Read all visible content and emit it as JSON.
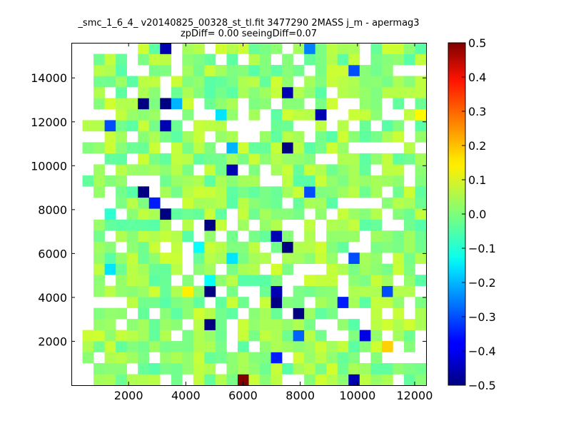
{
  "chart_data": {
    "type": "heatmap",
    "title": "_smc_1_6_4_ v20140825_00328_st_tl.fit 3477290 2MASS j_m - apermag3",
    "subtitle": "zpDiff= 0.00 seeingDiff=0.07",
    "xlabel": "",
    "ylabel": "",
    "xlim": [
      0,
      12400
    ],
    "ylim": [
      0,
      15600
    ],
    "x_ticks": [
      2000,
      4000,
      6000,
      8000,
      10000,
      12000
    ],
    "y_ticks": [
      2000,
      4000,
      6000,
      8000,
      10000,
      12000,
      14000
    ],
    "grid": false,
    "colorscale": "jet",
    "colorbar": {
      "min": -0.5,
      "max": 0.5,
      "ticks": [
        -0.5,
        -0.4,
        -0.3,
        -0.2,
        -0.1,
        0.0,
        0.1,
        0.2,
        0.3,
        0.4,
        0.5
      ]
    },
    "bin_size": [
      387.5,
      503.2
    ],
    "outlier_cells": [
      {
        "x": 5813,
        "y": 252,
        "value": 0.5
      },
      {
        "x": 9688,
        "y": 252,
        "value": -0.45
      },
      {
        "x": 6975,
        "y": 1258,
        "value": -0.35
      },
      {
        "x": 11138,
        "y": 1761,
        "value": 0.17
      },
      {
        "x": 7750,
        "y": 2264,
        "value": -0.28
      },
      {
        "x": 10075,
        "y": 2264,
        "value": -0.4
      },
      {
        "x": 4650,
        "y": 2767,
        "value": -0.5
      },
      {
        "x": 7750,
        "y": 3270,
        "value": -0.5
      },
      {
        "x": 6975,
        "y": 3774,
        "value": -0.5
      },
      {
        "x": 9300,
        "y": 3774,
        "value": -0.35
      },
      {
        "x": 4844,
        "y": 4277,
        "value": -0.38
      },
      {
        "x": 3875,
        "y": 4528,
        "value": 0.14
      },
      {
        "x": 4844,
        "y": 4528,
        "value": -0.5
      },
      {
        "x": 6975,
        "y": 4528,
        "value": -0.45
      },
      {
        "x": 10850,
        "y": 4528,
        "value": -0.3
      },
      {
        "x": 4844,
        "y": 5031,
        "value": -0.12
      },
      {
        "x": 5425,
        "y": 5786,
        "value": -0.15
      },
      {
        "x": 9688,
        "y": 5786,
        "value": -0.3
      },
      {
        "x": 1356,
        "y": 5535,
        "value": -0.15
      },
      {
        "x": 4456,
        "y": 6290,
        "value": -0.12
      },
      {
        "x": 7363,
        "y": 6290,
        "value": -0.5
      },
      {
        "x": 6975,
        "y": 6793,
        "value": -0.45
      },
      {
        "x": 4844,
        "y": 7296,
        "value": -0.5
      },
      {
        "x": 3294,
        "y": 7799,
        "value": -0.5
      },
      {
        "x": 1356,
        "y": 7799,
        "value": -0.08
      },
      {
        "x": 2713,
        "y": 8554,
        "value": -0.35
      },
      {
        "x": 2325,
        "y": 8806,
        "value": -0.5
      },
      {
        "x": 8138,
        "y": 8806,
        "value": -0.3
      },
      {
        "x": 5425,
        "y": 9813,
        "value": -0.45
      },
      {
        "x": 5619,
        "y": 10819,
        "value": -0.2
      },
      {
        "x": 7556,
        "y": 11070,
        "value": -0.5
      },
      {
        "x": 1163,
        "y": 11574,
        "value": -0.3
      },
      {
        "x": 3100,
        "y": 11574,
        "value": -0.45
      },
      {
        "x": 5038,
        "y": 12077,
        "value": -0.15
      },
      {
        "x": 8525,
        "y": 12077,
        "value": -0.45
      },
      {
        "x": 12013,
        "y": 12077,
        "value": 0.13
      },
      {
        "x": 2519,
        "y": 12580,
        "value": -0.5
      },
      {
        "x": 3681,
        "y": 12580,
        "value": -0.2
      },
      {
        "x": 3100,
        "y": 13083,
        "value": -0.5
      },
      {
        "x": 7556,
        "y": 13586,
        "value": -0.45
      },
      {
        "x": 9688,
        "y": 14090,
        "value": -0.3
      },
      {
        "x": 3100,
        "y": 15096,
        "value": -0.45
      },
      {
        "x": 8138,
        "y": 15096,
        "value": -0.25
      }
    ]
  }
}
